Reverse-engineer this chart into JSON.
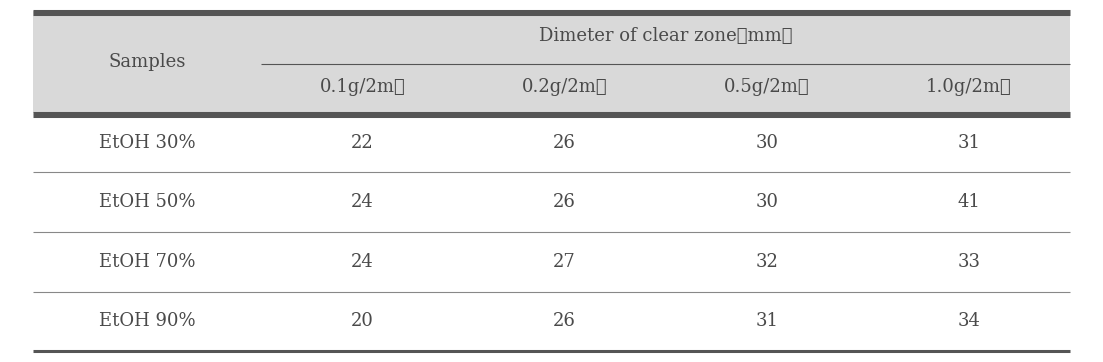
{
  "header_main": "Dimeter of clear zone（mm）",
  "header_sub": [
    "0.1g/2mℓ",
    "0.2g/2mℓ",
    "0.5g/2mℓ",
    "1.0g/2mℓ"
  ],
  "col0_header": "Samples",
  "rows": [
    [
      "EtOH 30%",
      "22",
      "26",
      "30",
      "31"
    ],
    [
      "EtOH 50%",
      "24",
      "26",
      "30",
      "41"
    ],
    [
      "EtOH 70%",
      "24",
      "27",
      "32",
      "33"
    ],
    [
      "EtOH 90%",
      "20",
      "26",
      "31",
      "34"
    ]
  ],
  "bg_header": "#d9d9d9",
  "bg_body": "#ffffff",
  "text_color": "#4a4a4a",
  "thick_line_color": "#555555",
  "thin_line_color": "#888888",
  "fig_width": 11.03,
  "fig_height": 3.62
}
